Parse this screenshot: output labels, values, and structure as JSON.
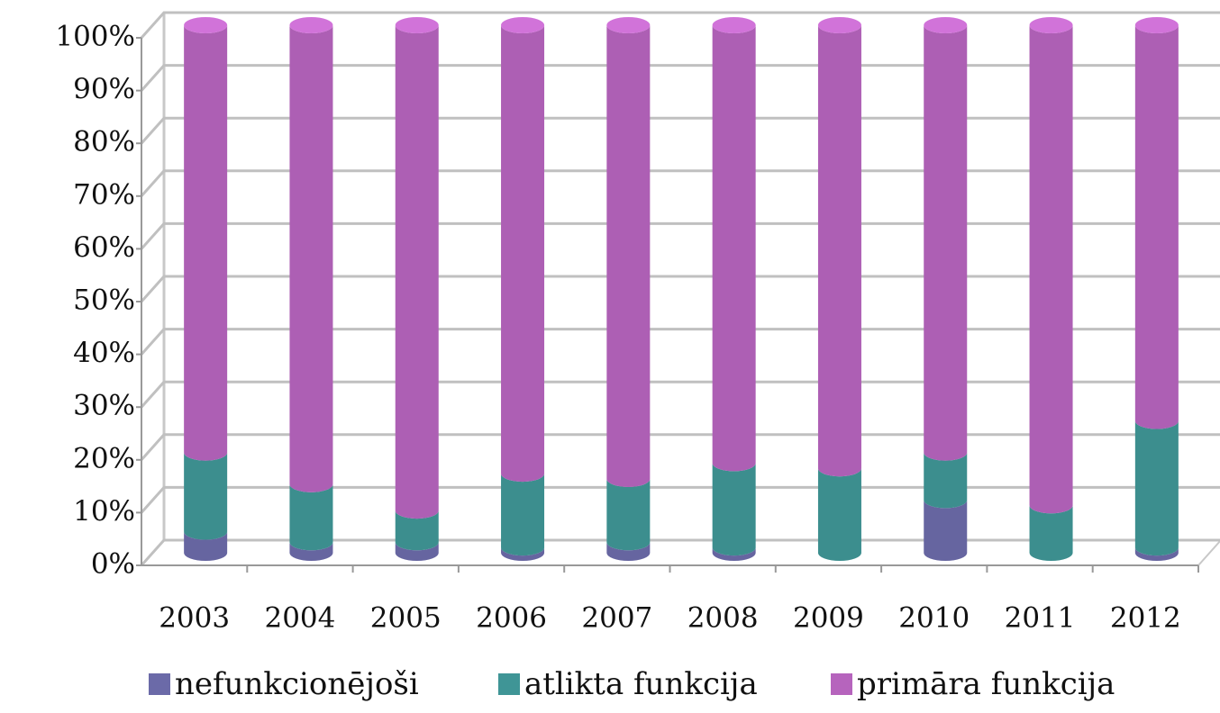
{
  "chart_data": {
    "type": "bar3d_stacked_percent",
    "categories": [
      "2003",
      "2004",
      "2005",
      "2006",
      "2007",
      "2008",
      "2009",
      "2010",
      "2011",
      "2012"
    ],
    "series": [
      {
        "name": "nefunkcionējoši",
        "color": "#6b6aa8",
        "values": [
          4,
          2,
          2,
          1,
          2,
          1,
          0,
          10,
          0,
          1
        ]
      },
      {
        "name": "atlikta funkcija",
        "color": "#3f9596",
        "values": [
          15,
          11,
          6,
          14,
          12,
          16,
          16,
          9,
          9,
          24
        ]
      },
      {
        "name": "primāra funkcija",
        "color": "#b664bd",
        "values": [
          81,
          87,
          92,
          85,
          86,
          83,
          84,
          81,
          91,
          75
        ]
      }
    ],
    "ylim": [
      0,
      100
    ],
    "yticks": [
      {
        "value": 0,
        "label": "0%"
      },
      {
        "value": 10,
        "label": "10%"
      },
      {
        "value": 20,
        "label": "20%"
      },
      {
        "value": 30,
        "label": "30%"
      },
      {
        "value": 40,
        "label": "40%"
      },
      {
        "value": 50,
        "label": "50%"
      },
      {
        "value": 60,
        "label": "60%"
      },
      {
        "value": 70,
        "label": "70%"
      },
      {
        "value": 80,
        "label": "80%"
      },
      {
        "value": 90,
        "label": "90%"
      },
      {
        "value": 100,
        "label": "100%"
      }
    ],
    "grid": true,
    "legend": "bottom"
  }
}
